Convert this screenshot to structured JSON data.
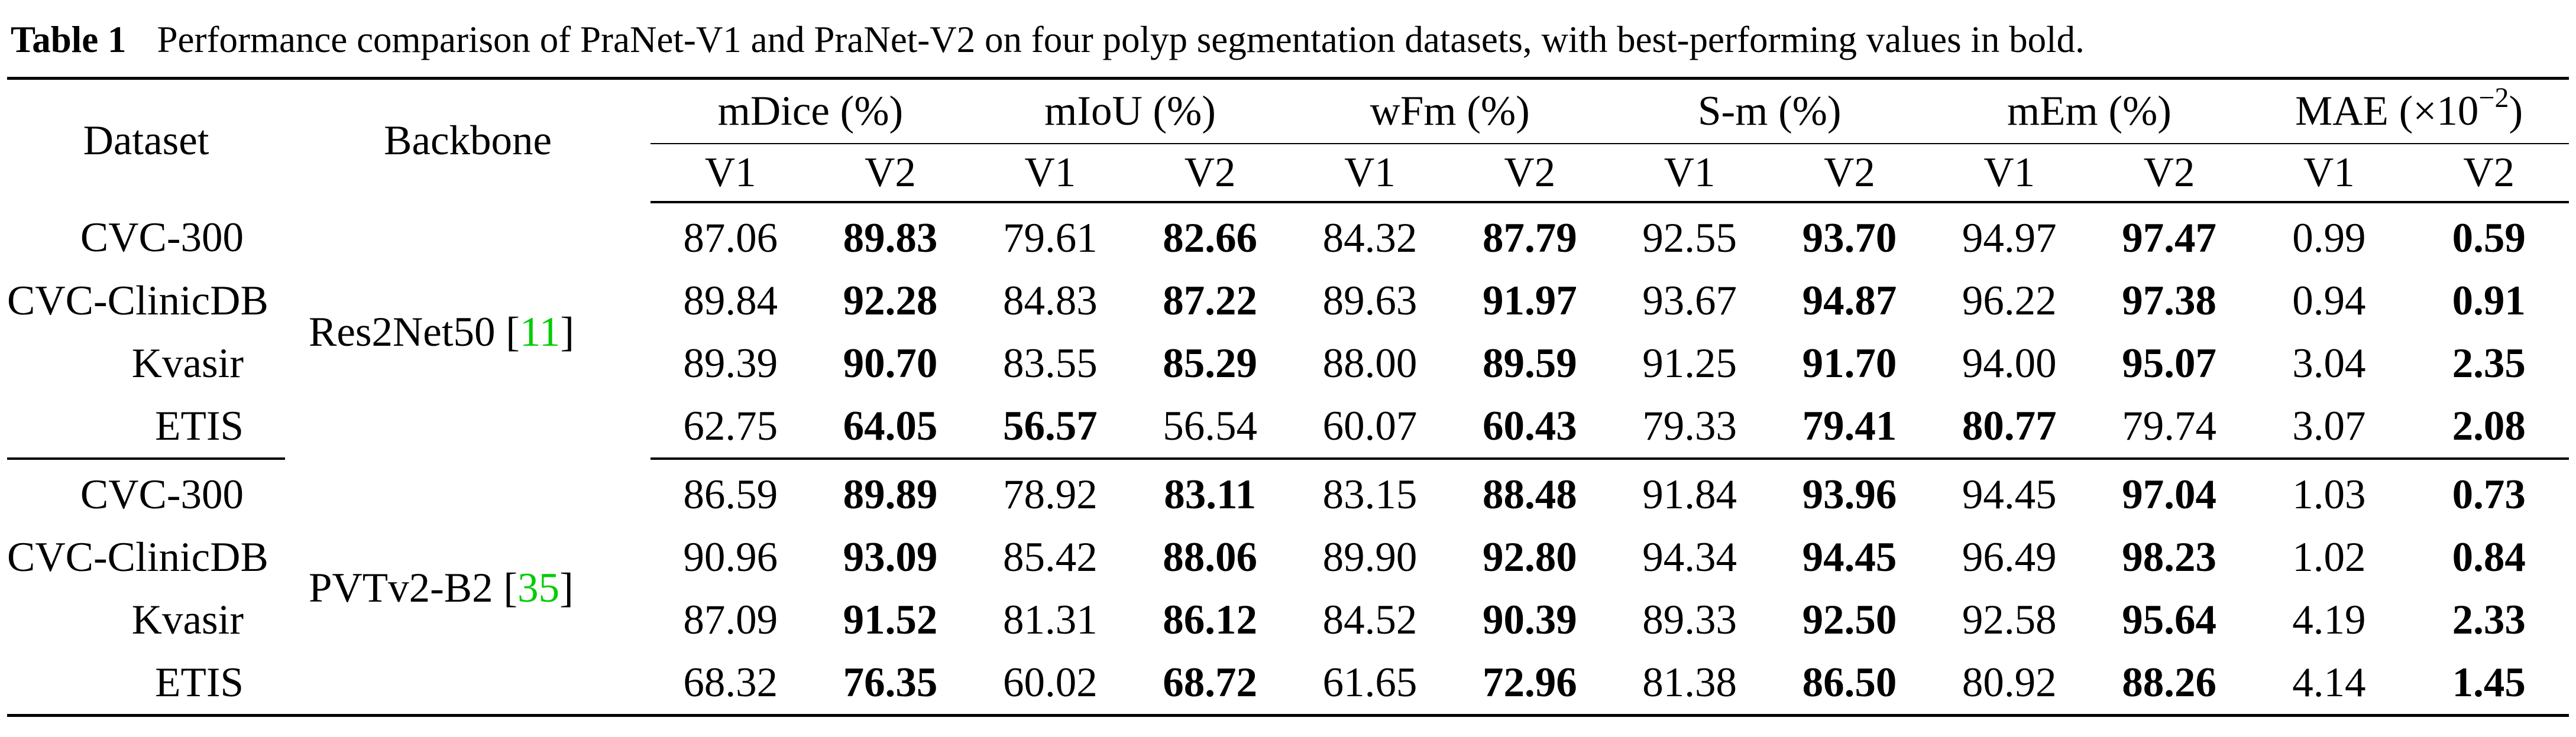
{
  "caption": {
    "label": "Table 1",
    "text": "Performance comparison of PraNet-V1 and PraNet-V2 on four polyp segmentation datasets, with best-performing values in bold."
  },
  "header": {
    "dataset": "Dataset",
    "backbone": "Backbone",
    "metrics": [
      {
        "name": "mDice (%)",
        "sub": [
          "V1",
          "V2"
        ]
      },
      {
        "name": "mIoU (%)",
        "sub": [
          "V1",
          "V2"
        ]
      },
      {
        "name": "wFm (%)",
        "sub": [
          "V1",
          "V2"
        ]
      },
      {
        "name": "S-m (%)",
        "sub": [
          "V1",
          "V2"
        ]
      },
      {
        "name": "mEm (%)",
        "sub": [
          "V1",
          "V2"
        ]
      },
      {
        "name_prefix": "MAE (×10",
        "name_sup": "−2",
        "name_suffix": ")",
        "sub": [
          "V1",
          "V2"
        ]
      }
    ]
  },
  "groups": [
    {
      "backbone": "Res2Net50",
      "cite": "11",
      "rows": [
        {
          "dataset": "CVC-300",
          "values": [
            "87.06",
            "89.83",
            "79.61",
            "82.66",
            "84.32",
            "87.79",
            "92.55",
            "93.70",
            "94.97",
            "97.47",
            "0.99",
            "0.59"
          ],
          "bold": [
            false,
            true,
            false,
            true,
            false,
            true,
            false,
            true,
            false,
            true,
            false,
            true
          ]
        },
        {
          "dataset": "CVC-ClinicDB",
          "values": [
            "89.84",
            "92.28",
            "84.83",
            "87.22",
            "89.63",
            "91.97",
            "93.67",
            "94.87",
            "96.22",
            "97.38",
            "0.94",
            "0.91"
          ],
          "bold": [
            false,
            true,
            false,
            true,
            false,
            true,
            false,
            true,
            false,
            true,
            false,
            true
          ]
        },
        {
          "dataset": "Kvasir",
          "values": [
            "89.39",
            "90.70",
            "83.55",
            "85.29",
            "88.00",
            "89.59",
            "91.25",
            "91.70",
            "94.00",
            "95.07",
            "3.04",
            "2.35"
          ],
          "bold": [
            false,
            true,
            false,
            true,
            false,
            true,
            false,
            true,
            false,
            true,
            false,
            true
          ]
        },
        {
          "dataset": "ETIS",
          "values": [
            "62.75",
            "64.05",
            "56.57",
            "56.54",
            "60.07",
            "60.43",
            "79.33",
            "79.41",
            "80.77",
            "79.74",
            "3.07",
            "2.08"
          ],
          "bold": [
            false,
            true,
            true,
            false,
            false,
            true,
            false,
            true,
            true,
            false,
            false,
            true
          ]
        }
      ]
    },
    {
      "backbone": "PVTv2-B2",
      "cite": "35",
      "rows": [
        {
          "dataset": "CVC-300",
          "values": [
            "86.59",
            "89.89",
            "78.92",
            "83.11",
            "83.15",
            "88.48",
            "91.84",
            "93.96",
            "94.45",
            "97.04",
            "1.03",
            "0.73"
          ],
          "bold": [
            false,
            true,
            false,
            true,
            false,
            true,
            false,
            true,
            false,
            true,
            false,
            true
          ]
        },
        {
          "dataset": "CVC-ClinicDB",
          "values": [
            "90.96",
            "93.09",
            "85.42",
            "88.06",
            "89.90",
            "92.80",
            "94.34",
            "94.45",
            "96.49",
            "98.23",
            "1.02",
            "0.84"
          ],
          "bold": [
            false,
            true,
            false,
            true,
            false,
            true,
            false,
            true,
            false,
            true,
            false,
            true
          ]
        },
        {
          "dataset": "Kvasir",
          "values": [
            "87.09",
            "91.52",
            "81.31",
            "86.12",
            "84.52",
            "90.39",
            "89.33",
            "92.50",
            "92.58",
            "95.64",
            "4.19",
            "2.33"
          ],
          "bold": [
            false,
            true,
            false,
            true,
            false,
            true,
            false,
            true,
            false,
            true,
            false,
            true
          ]
        },
        {
          "dataset": "ETIS",
          "values": [
            "68.32",
            "76.35",
            "60.02",
            "68.72",
            "61.65",
            "72.96",
            "81.38",
            "86.50",
            "80.92",
            "88.26",
            "4.14",
            "1.45"
          ],
          "bold": [
            false,
            true,
            false,
            true,
            false,
            true,
            false,
            true,
            false,
            true,
            false,
            true
          ]
        }
      ]
    }
  ]
}
